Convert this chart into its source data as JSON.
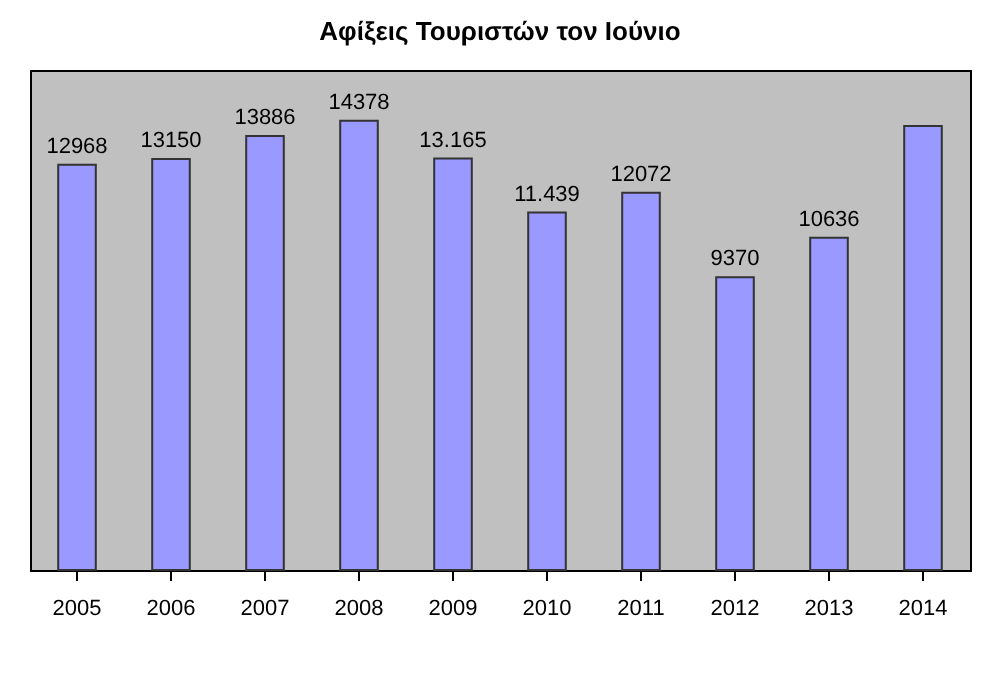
{
  "chart_data": {
    "type": "bar",
    "title": "Αφίξεις Τουριστών τον Ιούνιο",
    "categories": [
      "2005",
      "2006",
      "2007",
      "2008",
      "2009",
      "2010",
      "2011",
      "2012",
      "2013",
      "2014"
    ],
    "values": [
      12968,
      13150,
      13886,
      14378,
      13165,
      11439,
      12072,
      9370,
      10636,
      14210
    ],
    "value_labels": [
      "12968",
      "13150",
      "13886",
      "14378",
      "13.165",
      "11.439",
      "12072",
      "9370",
      "10636",
      null
    ],
    "color": "#9999ff",
    "ylim": [
      0,
      16000
    ],
    "tick_labels": "x"
  }
}
